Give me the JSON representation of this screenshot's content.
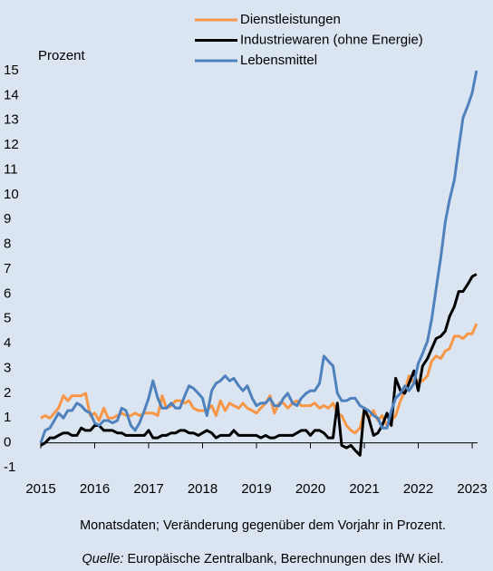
{
  "chart_data": {
    "type": "line",
    "y_axis_label": "Prozent",
    "note": "Monatsdaten; Veränderung gegenüber dem Vorjahr in Prozent.",
    "source_label": "Quelle:",
    "source": "Europäische Zentralbank, Berechnungen des IfW Kiel.",
    "x": [
      2015,
      2015.08,
      2015.17,
      2015.25,
      2015.33,
      2015.42,
      2015.5,
      2015.58,
      2015.67,
      2015.75,
      2015.83,
      2015.92,
      2016,
      2016.08,
      2016.17,
      2016.25,
      2016.33,
      2016.42,
      2016.5,
      2016.58,
      2016.67,
      2016.75,
      2016.83,
      2016.92,
      2017,
      2017.08,
      2017.17,
      2017.25,
      2017.33,
      2017.42,
      2017.5,
      2017.58,
      2017.67,
      2017.75,
      2017.83,
      2017.92,
      2018,
      2018.08,
      2018.17,
      2018.25,
      2018.33,
      2018.42,
      2018.5,
      2018.58,
      2018.67,
      2018.75,
      2018.83,
      2018.92,
      2019,
      2019.08,
      2019.17,
      2019.25,
      2019.33,
      2019.42,
      2019.5,
      2019.58,
      2019.67,
      2019.75,
      2019.83,
      2019.92,
      2020,
      2020.08,
      2020.17,
      2020.25,
      2020.33,
      2020.42,
      2020.5,
      2020.58,
      2020.67,
      2020.75,
      2020.83,
      2020.92,
      2021,
      2021.08,
      2021.17,
      2021.25,
      2021.33,
      2021.42,
      2021.5,
      2021.58,
      2021.67,
      2021.75,
      2021.83,
      2021.92,
      2022,
      2022.08,
      2022.17,
      2022.25,
      2022.33,
      2022.42,
      2022.5,
      2022.58,
      2022.67,
      2022.75,
      2022.83,
      2022.92,
      2023,
      2023.08
    ],
    "series": [
      {
        "name": "Dienstleistungen",
        "color": "#f79646",
        "values": [
          1.0,
          1.1,
          1.0,
          1.2,
          1.4,
          1.9,
          1.7,
          1.9,
          1.9,
          1.9,
          2.0,
          1.1,
          1.2,
          0.9,
          1.4,
          1.0,
          1.0,
          1.1,
          1.2,
          1.1,
          1.1,
          1.2,
          1.1,
          1.2,
          1.2,
          1.2,
          1.1,
          1.9,
          1.4,
          1.5,
          1.7,
          1.7,
          1.6,
          1.7,
          1.4,
          1.3,
          1.3,
          1.3,
          1.5,
          1.1,
          1.7,
          1.3,
          1.6,
          1.5,
          1.4,
          1.6,
          1.4,
          1.3,
          1.2,
          1.4,
          1.6,
          1.9,
          1.2,
          1.6,
          1.6,
          1.4,
          1.6,
          1.7,
          1.5,
          1.5,
          1.5,
          1.6,
          1.4,
          1.5,
          1.4,
          1.6,
          1.2,
          1.1,
          0.7,
          0.5,
          0.4,
          0.6,
          1.3,
          1.0,
          1.3,
          0.9,
          1.1,
          0.7,
          0.9,
          1.1,
          1.7,
          2.1,
          2.7,
          2.4,
          2.5,
          2.5,
          2.7,
          3.3,
          3.5,
          3.4,
          3.7,
          3.8,
          4.3,
          4.3,
          4.2,
          4.4,
          4.4,
          4.8
        ]
      },
      {
        "name": "Industriewaren (ohne Energie)",
        "color": "#000000",
        "values": [
          -0.1,
          0.0,
          0.2,
          0.2,
          0.3,
          0.4,
          0.4,
          0.3,
          0.3,
          0.6,
          0.5,
          0.5,
          0.7,
          0.7,
          0.5,
          0.5,
          0.5,
          0.4,
          0.4,
          0.3,
          0.3,
          0.3,
          0.3,
          0.3,
          0.5,
          0.2,
          0.2,
          0.3,
          0.3,
          0.4,
          0.4,
          0.5,
          0.5,
          0.4,
          0.4,
          0.3,
          0.4,
          0.5,
          0.4,
          0.2,
          0.3,
          0.3,
          0.3,
          0.5,
          0.3,
          0.3,
          0.3,
          0.3,
          0.3,
          0.2,
          0.3,
          0.2,
          0.2,
          0.3,
          0.3,
          0.3,
          0.3,
          0.4,
          0.5,
          0.5,
          0.3,
          0.5,
          0.5,
          0.4,
          0.2,
          0.2,
          1.6,
          -0.1,
          -0.2,
          -0.1,
          -0.3,
          -0.5,
          1.4,
          1.0,
          0.3,
          0.4,
          0.7,
          1.2,
          0.7,
          2.6,
          2.1,
          2.0,
          2.4,
          2.9,
          2.1,
          3.1,
          3.4,
          3.8,
          4.2,
          4.3,
          4.5,
          5.1,
          5.5,
          6.1,
          6.1,
          6.4,
          6.7,
          6.8
        ]
      },
      {
        "name": "Lebensmittel",
        "color": "#4f81bd",
        "values": [
          0.0,
          0.5,
          0.6,
          0.9,
          1.2,
          1.0,
          1.3,
          1.3,
          1.6,
          1.5,
          1.3,
          1.2,
          0.8,
          0.7,
          0.9,
          0.9,
          0.8,
          0.9,
          1.4,
          1.3,
          0.7,
          0.5,
          0.8,
          1.3,
          1.8,
          2.5,
          1.8,
          1.4,
          1.4,
          1.6,
          1.4,
          1.4,
          1.9,
          2.3,
          2.2,
          2.0,
          1.8,
          1.1,
          2.1,
          2.4,
          2.5,
          2.7,
          2.5,
          2.6,
          2.3,
          2.1,
          2.3,
          1.8,
          1.5,
          1.6,
          1.6,
          1.8,
          1.5,
          1.5,
          1.8,
          2.0,
          1.6,
          1.5,
          1.8,
          2.0,
          2.1,
          2.1,
          2.4,
          3.5,
          3.3,
          3.1,
          2.0,
          1.7,
          1.7,
          1.8,
          1.8,
          1.5,
          1.4,
          1.3,
          1.1,
          1.0,
          0.6,
          0.6,
          1.3,
          1.8,
          2.0,
          2.3,
          2.1,
          2.4,
          3.2,
          3.6,
          4.1,
          5.0,
          6.2,
          7.5,
          8.9,
          9.8,
          10.6,
          11.9,
          13.1,
          13.6,
          14.1,
          15.0
        ]
      }
    ],
    "xlim": [
      2015,
      2023.1
    ],
    "xticks": [
      2015,
      2016,
      2017,
      2018,
      2019,
      2020,
      2021,
      2022,
      2023
    ],
    "ylim": [
      -1,
      15
    ],
    "yticks": [
      -1,
      0,
      1,
      2,
      3,
      4,
      5,
      6,
      7,
      8,
      9,
      10,
      11,
      12,
      13,
      14,
      15
    ],
    "grid": false,
    "legend": "top"
  }
}
